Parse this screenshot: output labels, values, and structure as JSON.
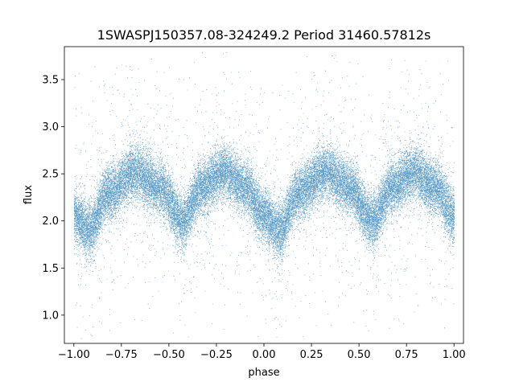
{
  "chart_data": {
    "type": "scatter",
    "title": "1SWASPJ150357.08-324249.2 Period 31460.57812s",
    "xlabel": "phase",
    "ylabel": "flux",
    "xlim": [
      -1.05,
      1.05
    ],
    "ylim": [
      0.7,
      3.85
    ],
    "xticks": [
      -1.0,
      -0.75,
      -0.5,
      -0.25,
      0.0,
      0.25,
      0.5,
      0.75,
      1.0
    ],
    "xtick_labels": [
      "−1.00",
      "−0.75",
      "−0.50",
      "−0.25",
      "0.00",
      "0.25",
      "0.50",
      "0.75",
      "1.00"
    ],
    "yticks": [
      1.0,
      1.5,
      2.0,
      2.5,
      3.0,
      3.5
    ],
    "ytick_labels": [
      "1.0",
      "1.5",
      "2.0",
      "2.5",
      "3.0",
      "3.5"
    ],
    "grid": false,
    "marker_color": "#1f77b4",
    "phase_range": [
      -1.0,
      1.0
    ],
    "light_curve_profile": {
      "phase": [
        -1.0,
        -0.92,
        -0.82,
        -0.68,
        -0.55,
        -0.43,
        -0.33,
        -0.21,
        -0.1,
        0.0,
        0.08,
        0.18,
        0.32,
        0.45,
        0.57,
        0.67,
        0.79,
        0.9,
        1.0
      ],
      "flux": [
        2.05,
        1.9,
        2.3,
        2.52,
        2.35,
        2.0,
        2.35,
        2.52,
        2.35,
        2.05,
        1.9,
        2.3,
        2.52,
        2.35,
        2.0,
        2.35,
        2.52,
        2.35,
        2.05
      ]
    },
    "primary_minimum": {
      "phase": 0.08,
      "flux": 1.9
    },
    "secondary_minimum": {
      "phase": 0.57,
      "flux": 2.0
    },
    "maxima_flux": 2.52,
    "scatter_spread": 0.14,
    "point_count": 36000
  }
}
